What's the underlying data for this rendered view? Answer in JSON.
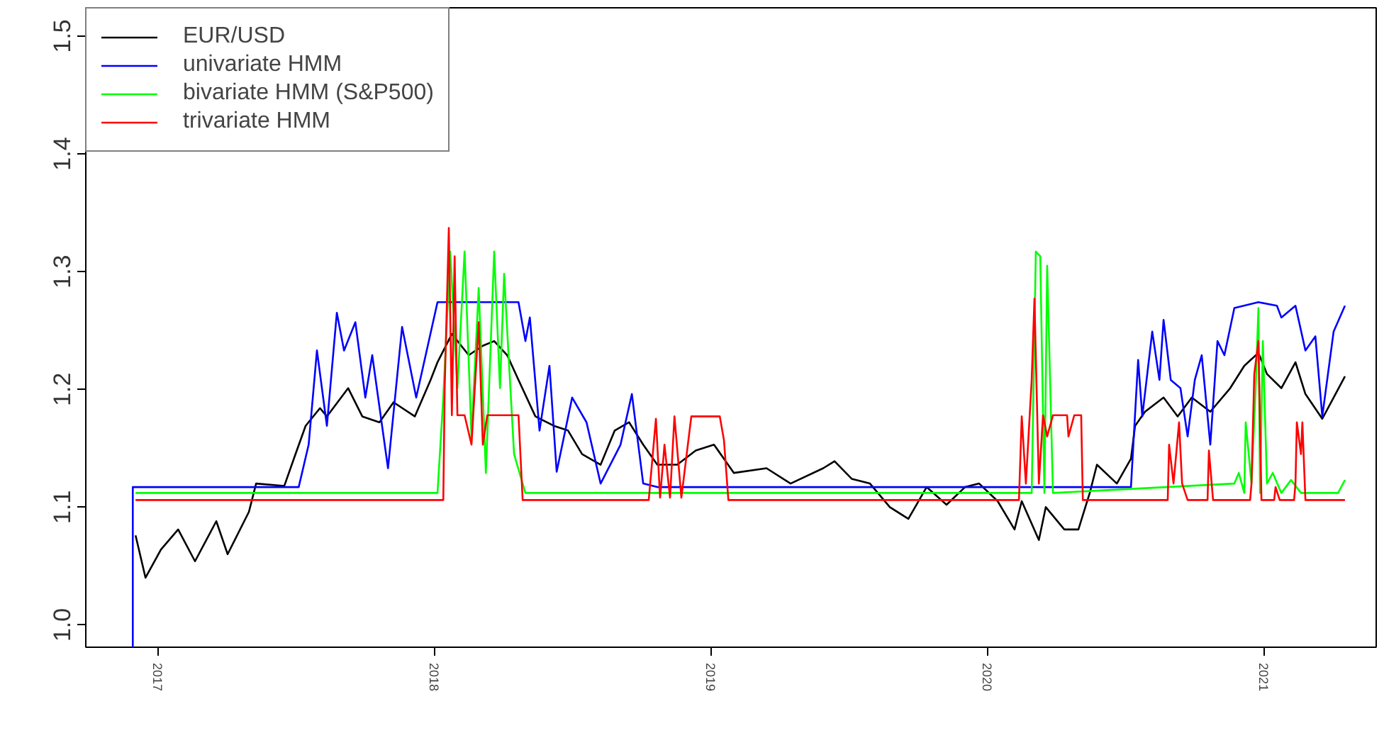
{
  "chart_data": {
    "type": "line",
    "xlim": [
      2016.738,
      2021.405
    ],
    "ylim": [
      0.981,
      1.524
    ],
    "xticks": [
      2017,
      2018,
      2019,
      2020,
      2021
    ],
    "yticks": [
      {
        "value": 1.0,
        "label": "1.0"
      },
      1.1,
      1.2,
      1.3,
      1.4,
      1.5
    ],
    "legend": "top left",
    "line_style": "solid",
    "marker": "none",
    "series": [
      {
        "name": "EUR/USD",
        "color": "#000000",
        "x": [
          2016.918,
          2016.954,
          2017.01,
          2017.072,
          2017.133,
          2017.21,
          2017.251,
          2017.328,
          2017.354,
          2017.456,
          2017.492,
          2017.533,
          2017.585,
          2017.61,
          2017.687,
          2017.738,
          2017.8,
          2017.851,
          2017.928,
          2017.985,
          2018.01,
          2018.062,
          2018.123,
          2018.174,
          2018.215,
          2018.262,
          2018.303,
          2018.364,
          2018.431,
          2018.482,
          2018.533,
          2018.6,
          2018.651,
          2018.703,
          2018.754,
          2018.805,
          2018.877,
          2018.944,
          2019.01,
          2019.082,
          2019.2,
          2019.287,
          2019.405,
          2019.446,
          2019.508,
          2019.574,
          2019.646,
          2019.713,
          2019.779,
          2019.851,
          2019.918,
          2019.969,
          2020.036,
          2020.097,
          2020.123,
          2020.185,
          2020.21,
          2020.277,
          2020.328,
          2020.369,
          2020.395,
          2020.467,
          2020.518,
          2020.533,
          2020.569,
          2020.636,
          2020.687,
          2020.738,
          2020.805,
          2020.877,
          2020.928,
          2020.979,
          2021.01,
          2021.062,
          2021.113,
          2021.149,
          2021.21,
          2021.251,
          2021.292
        ],
        "values": [
          1.076,
          1.04,
          1.064,
          1.081,
          1.054,
          1.088,
          1.06,
          1.096,
          1.12,
          1.118,
          1.142,
          1.169,
          1.184,
          1.177,
          1.201,
          1.177,
          1.172,
          1.189,
          1.177,
          1.208,
          1.223,
          1.247,
          1.229,
          1.237,
          1.241,
          1.229,
          1.208,
          1.177,
          1.169,
          1.165,
          1.145,
          1.136,
          1.165,
          1.172,
          1.153,
          1.136,
          1.136,
          1.148,
          1.153,
          1.129,
          1.133,
          1.12,
          1.133,
          1.139,
          1.124,
          1.12,
          1.1,
          1.09,
          1.117,
          1.102,
          1.117,
          1.12,
          1.105,
          1.081,
          1.105,
          1.072,
          1.1,
          1.081,
          1.081,
          1.112,
          1.136,
          1.12,
          1.141,
          1.169,
          1.181,
          1.193,
          1.177,
          1.193,
          1.181,
          1.201,
          1.22,
          1.231,
          1.213,
          1.201,
          1.223,
          1.196,
          1.175,
          1.193,
          1.211
        ]
      },
      {
        "name": "univariate HMM",
        "color": "#0000ff",
        "x": [
          2016.908,
          2016.908,
          2017.508,
          2017.544,
          2017.574,
          2017.61,
          2017.646,
          2017.672,
          2017.713,
          2017.749,
          2017.774,
          2017.831,
          2017.882,
          2017.933,
          2018.01,
          2018.021,
          2018.303,
          2018.328,
          2018.344,
          2018.379,
          2018.415,
          2018.441,
          2018.497,
          2018.549,
          2018.6,
          2018.672,
          2018.713,
          2018.754,
          2018.805,
          2020.518,
          2020.544,
          2020.559,
          2020.595,
          2020.621,
          2020.636,
          2020.662,
          2020.697,
          2020.723,
          2020.749,
          2020.774,
          2020.805,
          2020.831,
          2020.856,
          2020.892,
          2020.979,
          2021.046,
          2021.062,
          2021.113,
          2021.149,
          2021.185,
          2021.21,
          2021.251,
          2021.292
        ],
        "values": [
          0.981,
          1.117,
          1.117,
          1.153,
          1.233,
          1.169,
          1.265,
          1.233,
          1.257,
          1.193,
          1.229,
          1.133,
          1.253,
          1.193,
          1.274,
          1.274,
          1.274,
          1.241,
          1.261,
          1.165,
          1.22,
          1.13,
          1.193,
          1.172,
          1.12,
          1.153,
          1.196,
          1.12,
          1.117,
          1.117,
          1.225,
          1.177,
          1.249,
          1.208,
          1.259,
          1.208,
          1.201,
          1.16,
          1.208,
          1.229,
          1.153,
          1.241,
          1.229,
          1.269,
          1.274,
          1.271,
          1.261,
          1.271,
          1.233,
          1.245,
          1.177,
          1.249,
          1.271
        ]
      },
      {
        "name": "bivariate HMM (S&P500)",
        "color": "#00ff00",
        "x": [
          2016.918,
          2018.01,
          2018.031,
          2018.056,
          2018.082,
          2018.108,
          2018.133,
          2018.159,
          2018.185,
          2018.215,
          2018.236,
          2018.251,
          2018.267,
          2018.287,
          2018.328,
          2020.159,
          2020.174,
          2020.19,
          2020.205,
          2020.215,
          2020.236,
          2020.892,
          2020.908,
          2020.928,
          2020.933,
          2020.954,
          2020.969,
          2020.979,
          2020.985,
          2020.995,
          2021.01,
          2021.031,
          2021.062,
          2021.097,
          2021.133,
          2021.267,
          2021.292
        ],
        "values": [
          1.112,
          1.112,
          1.193,
          1.317,
          1.201,
          1.317,
          1.16,
          1.286,
          1.129,
          1.317,
          1.201,
          1.298,
          1.229,
          1.145,
          1.112,
          1.112,
          1.317,
          1.313,
          1.112,
          1.305,
          1.112,
          1.12,
          1.129,
          1.112,
          1.172,
          1.12,
          1.201,
          1.269,
          1.112,
          1.241,
          1.12,
          1.129,
          1.112,
          1.123,
          1.112,
          1.112,
          1.123
        ]
      },
      {
        "name": "trivariate HMM",
        "color": "#ff0000",
        "x": [
          2016.918,
          2018.031,
          2018.036,
          2018.051,
          2018.062,
          2018.072,
          2018.082,
          2018.108,
          2018.133,
          2018.159,
          2018.174,
          2018.19,
          2018.303,
          2018.318,
          2018.774,
          2018.8,
          2018.815,
          2018.831,
          2018.851,
          2018.867,
          2018.892,
          2018.928,
          2019.031,
          2019.046,
          2019.062,
          2020.113,
          2020.123,
          2020.138,
          2020.159,
          2020.169,
          2020.185,
          2020.2,
          2020.215,
          2020.236,
          2020.287,
          2020.292,
          2020.313,
          2020.338,
          2020.344,
          2020.651,
          2020.656,
          2020.672,
          2020.692,
          2020.703,
          2020.723,
          2020.795,
          2020.8,
          2020.815,
          2020.949,
          2020.954,
          2020.964,
          2020.979,
          2020.99,
          2021.036,
          2021.041,
          2021.056,
          2021.108,
          2021.113,
          2021.118,
          2021.133,
          2021.138,
          2021.149,
          2021.292
        ],
        "values": [
          1.106,
          1.106,
          1.201,
          1.337,
          1.178,
          1.313,
          1.178,
          1.178,
          1.153,
          1.257,
          1.153,
          1.178,
          1.178,
          1.106,
          1.106,
          1.175,
          1.108,
          1.153,
          1.108,
          1.177,
          1.108,
          1.177,
          1.177,
          1.157,
          1.106,
          1.106,
          1.177,
          1.12,
          1.208,
          1.277,
          1.12,
          1.178,
          1.16,
          1.178,
          1.178,
          1.16,
          1.178,
          1.178,
          1.106,
          1.106,
          1.153,
          1.12,
          1.172,
          1.12,
          1.106,
          1.106,
          1.148,
          1.106,
          1.106,
          1.12,
          1.213,
          1.241,
          1.106,
          1.106,
          1.117,
          1.106,
          1.106,
          1.12,
          1.172,
          1.145,
          1.172,
          1.106,
          1.106
        ]
      }
    ]
  }
}
